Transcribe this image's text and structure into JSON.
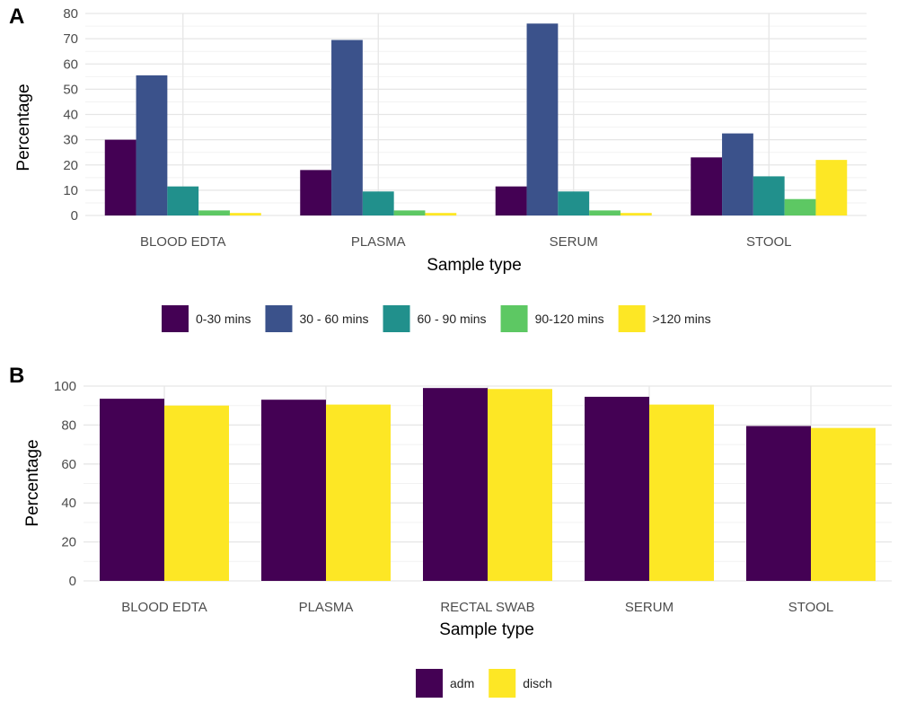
{
  "chart_data": [
    {
      "panel": "A",
      "type": "bar",
      "xlabel": "Sample type",
      "ylabel": "Percentage",
      "ylim": [
        0,
        80
      ],
      "yticks": [
        0,
        10,
        20,
        30,
        40,
        50,
        60,
        70,
        80
      ],
      "grid": true,
      "legend_position": "bottom",
      "categories": [
        "BLOOD EDTA",
        "PLASMA",
        "SERUM",
        "STOOL"
      ],
      "series": [
        {
          "name": "0-30 mins",
          "color": "#440154",
          "values": [
            30,
            18,
            11.5,
            23
          ]
        },
        {
          "name": "30 - 60 mins",
          "color": "#3b528b",
          "values": [
            55.5,
            69.5,
            76,
            32.5
          ]
        },
        {
          "name": "60 - 90 mins",
          "color": "#21908c",
          "values": [
            11.5,
            9.5,
            9.5,
            15.5
          ]
        },
        {
          "name": "90-120 mins",
          "color": "#5dc863",
          "values": [
            2,
            2,
            2,
            6.5
          ]
        },
        {
          "name": ">120 mins",
          "color": "#fde725",
          "values": [
            1,
            1,
            1,
            22
          ]
        }
      ]
    },
    {
      "panel": "B",
      "type": "bar",
      "xlabel": "Sample type",
      "ylabel": "Percentage",
      "ylim": [
        0,
        100
      ],
      "yticks": [
        0,
        20,
        40,
        60,
        80,
        100
      ],
      "grid": true,
      "legend_position": "bottom",
      "categories": [
        "BLOOD EDTA",
        "PLASMA",
        "RECTAL SWAB",
        "SERUM",
        "STOOL"
      ],
      "series": [
        {
          "name": "adm",
          "color": "#440154",
          "values": [
            93.5,
            93,
            99,
            94.5,
            79.5
          ]
        },
        {
          "name": "disch",
          "color": "#fde725",
          "values": [
            90,
            90.5,
            98.5,
            90.5,
            78.5
          ]
        }
      ]
    }
  ]
}
